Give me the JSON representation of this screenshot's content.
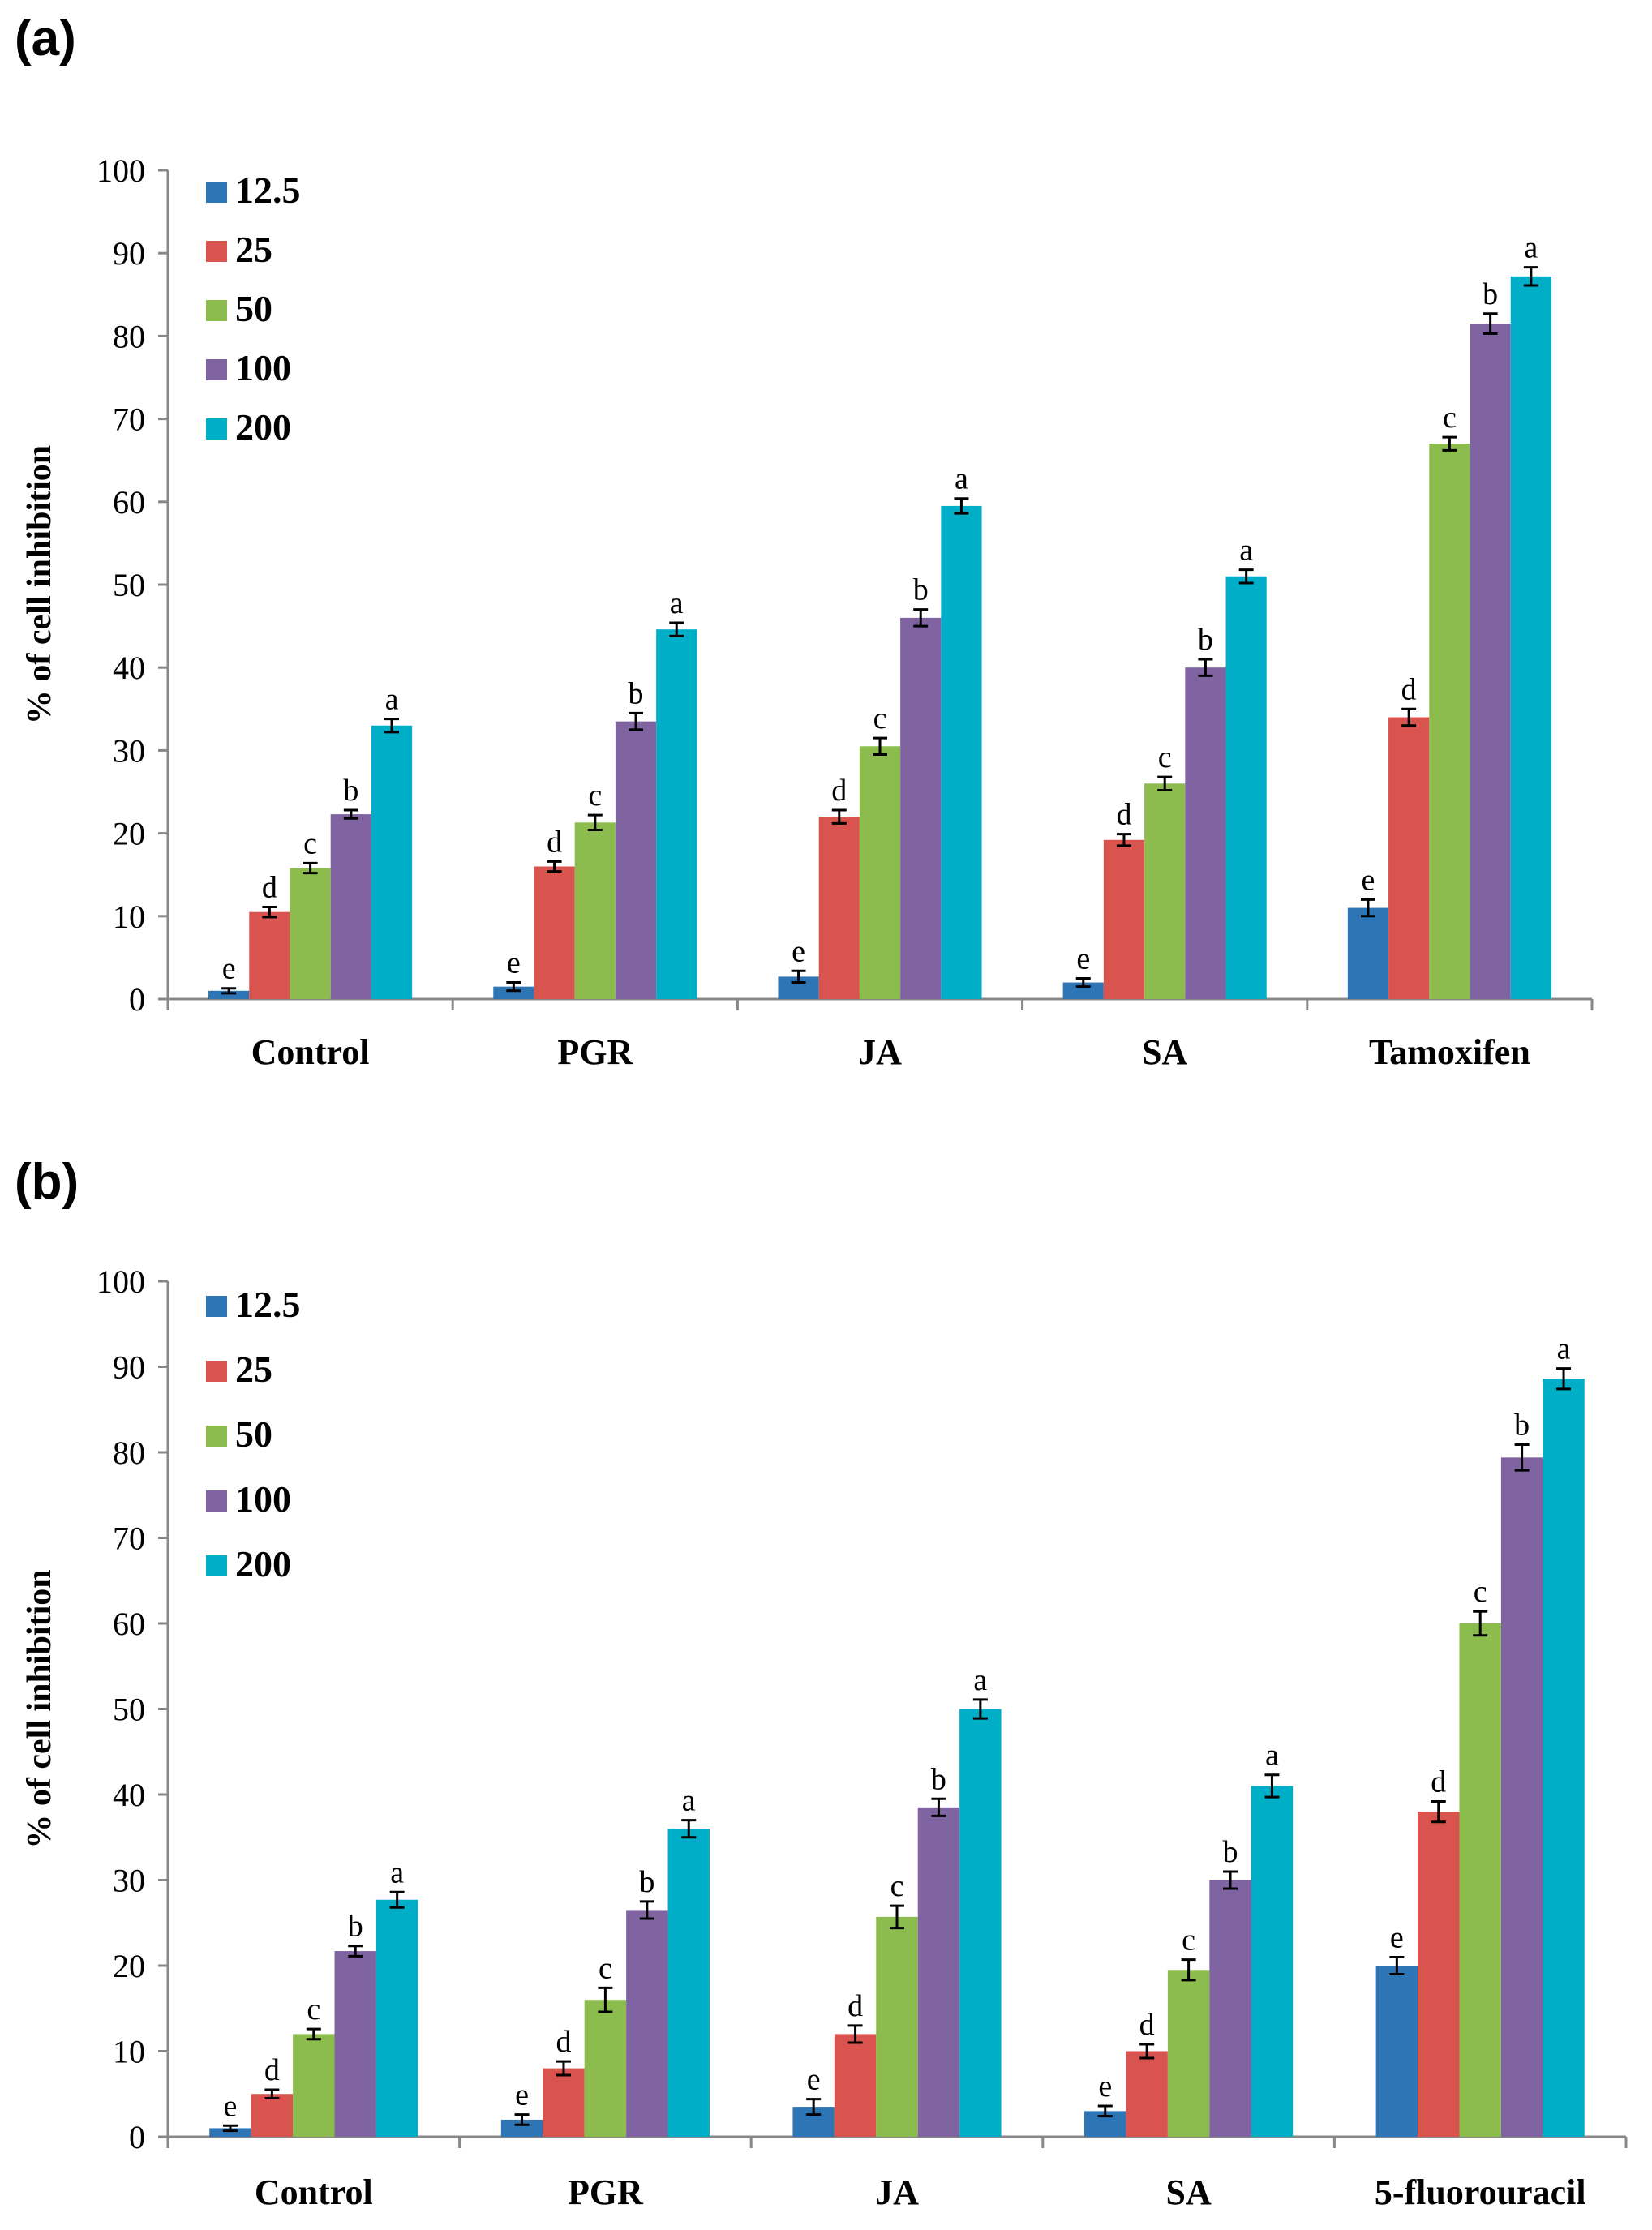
{
  "chart_data": [
    {
      "type": "bar",
      "panel_label": "(a)",
      "ylabel": "% of cell inhibition",
      "xlabel": "",
      "ylim": [
        0,
        100
      ],
      "yticks": [
        0,
        10,
        20,
        30,
        40,
        50,
        60,
        70,
        80,
        90,
        100
      ],
      "grid": false,
      "legend_position": "top-left",
      "categories": [
        "Control",
        "PGR",
        "JA",
        "SA",
        "Tamoxifen"
      ],
      "series": [
        {
          "name": "12.5",
          "color": "#2e75b6",
          "values": [
            1.0,
            1.5,
            2.7,
            2.0,
            11.0
          ],
          "errors": [
            0.3,
            0.5,
            0.7,
            0.5,
            1.0
          ],
          "letters": [
            "e",
            "e",
            "e",
            "e",
            "e"
          ]
        },
        {
          "name": "25",
          "color": "#d9534f",
          "values": [
            10.5,
            16.0,
            22.0,
            19.2,
            34.0
          ],
          "errors": [
            0.6,
            0.6,
            0.8,
            0.7,
            1.0
          ],
          "letters": [
            "d",
            "d",
            "d",
            "d",
            "d"
          ]
        },
        {
          "name": "50",
          "color": "#8cbb4e",
          "values": [
            15.8,
            21.3,
            30.5,
            26.0,
            67.0
          ],
          "errors": [
            0.6,
            0.9,
            1.0,
            0.8,
            0.8
          ],
          "letters": [
            "c",
            "c",
            "c",
            "c",
            "c"
          ]
        },
        {
          "name": "100",
          "color": "#8064a2",
          "values": [
            22.3,
            33.5,
            46.0,
            40.0,
            81.5
          ],
          "errors": [
            0.5,
            1.0,
            1.0,
            1.0,
            1.2
          ],
          "letters": [
            "b",
            "b",
            "b",
            "b",
            "b"
          ]
        },
        {
          "name": "200",
          "color": "#00aec8",
          "values": [
            33.0,
            44.6,
            59.5,
            51.0,
            87.2
          ],
          "errors": [
            0.8,
            0.8,
            0.9,
            0.8,
            1.1
          ],
          "letters": [
            "a",
            "a",
            "a",
            "a",
            "a"
          ]
        }
      ]
    },
    {
      "type": "bar",
      "panel_label": "(b)",
      "ylabel": "% of cell inhibition",
      "xlabel": "",
      "ylim": [
        0,
        100
      ],
      "yticks": [
        0,
        10,
        20,
        30,
        40,
        50,
        60,
        70,
        80,
        90,
        100
      ],
      "grid": false,
      "legend_position": "top-left",
      "categories": [
        "Control",
        "PGR",
        "JA",
        "SA",
        "5-fluorouracil"
      ],
      "series": [
        {
          "name": "12.5",
          "color": "#2e75b6",
          "values": [
            1.0,
            2.0,
            3.5,
            3.0,
            20.0
          ],
          "errors": [
            0.3,
            0.6,
            0.9,
            0.6,
            1.0
          ],
          "letters": [
            "e",
            "e",
            "e",
            "e",
            "e"
          ]
        },
        {
          "name": "25",
          "color": "#d9534f",
          "values": [
            5.0,
            8.0,
            12.0,
            10.0,
            38.0
          ],
          "errors": [
            0.5,
            0.8,
            1.0,
            0.8,
            1.2
          ],
          "letters": [
            "d",
            "d",
            "d",
            "d",
            "d"
          ]
        },
        {
          "name": "50",
          "color": "#8cbb4e",
          "values": [
            12.0,
            16.0,
            25.7,
            19.5,
            60.0
          ],
          "errors": [
            0.6,
            1.4,
            1.3,
            1.2,
            1.4
          ],
          "letters": [
            "c",
            "c",
            "c",
            "c",
            "c"
          ]
        },
        {
          "name": "100",
          "color": "#8064a2",
          "values": [
            21.7,
            26.5,
            38.5,
            30.0,
            79.4
          ],
          "errors": [
            0.6,
            1.0,
            1.0,
            1.0,
            1.5
          ],
          "letters": [
            "b",
            "b",
            "b",
            "b",
            "b"
          ]
        },
        {
          "name": "200",
          "color": "#00aec8",
          "values": [
            27.7,
            36.0,
            50.0,
            41.0,
            88.6
          ],
          "errors": [
            0.9,
            1.0,
            1.1,
            1.3,
            1.2
          ],
          "letters": [
            "a",
            "a",
            "a",
            "a",
            "a"
          ]
        }
      ]
    }
  ]
}
